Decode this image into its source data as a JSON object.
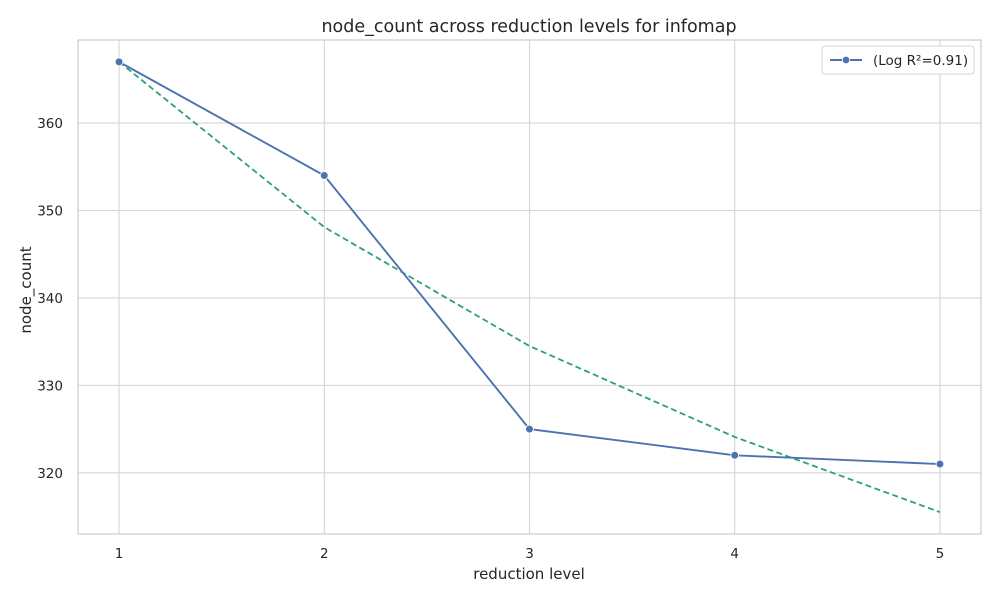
{
  "chart_data": {
    "type": "line",
    "title": "node_count across reduction levels for infomap",
    "xlabel": "reduction level",
    "ylabel": "node_count",
    "x": [
      1,
      2,
      3,
      4,
      5
    ],
    "xticks": [
      "1",
      "2",
      "3",
      "4",
      "5"
    ],
    "yticks": [
      "320",
      "330",
      "340",
      "350",
      "360"
    ],
    "xlim": [
      0.8,
      5.2
    ],
    "ylim": [
      313.0,
      369.5
    ],
    "grid": true,
    "legend_position": "top-right",
    "series": [
      {
        "name": "(Log R²=0.91)",
        "values": [
          367,
          354,
          325,
          322,
          321
        ],
        "color": "#4c72b0",
        "style": "solid",
        "marker": "circle"
      },
      {
        "values": [
          367.0,
          348.1,
          334.5,
          324.1,
          315.5
        ],
        "color": "#2ca07a",
        "style": "dashed",
        "marker": "none"
      }
    ]
  }
}
